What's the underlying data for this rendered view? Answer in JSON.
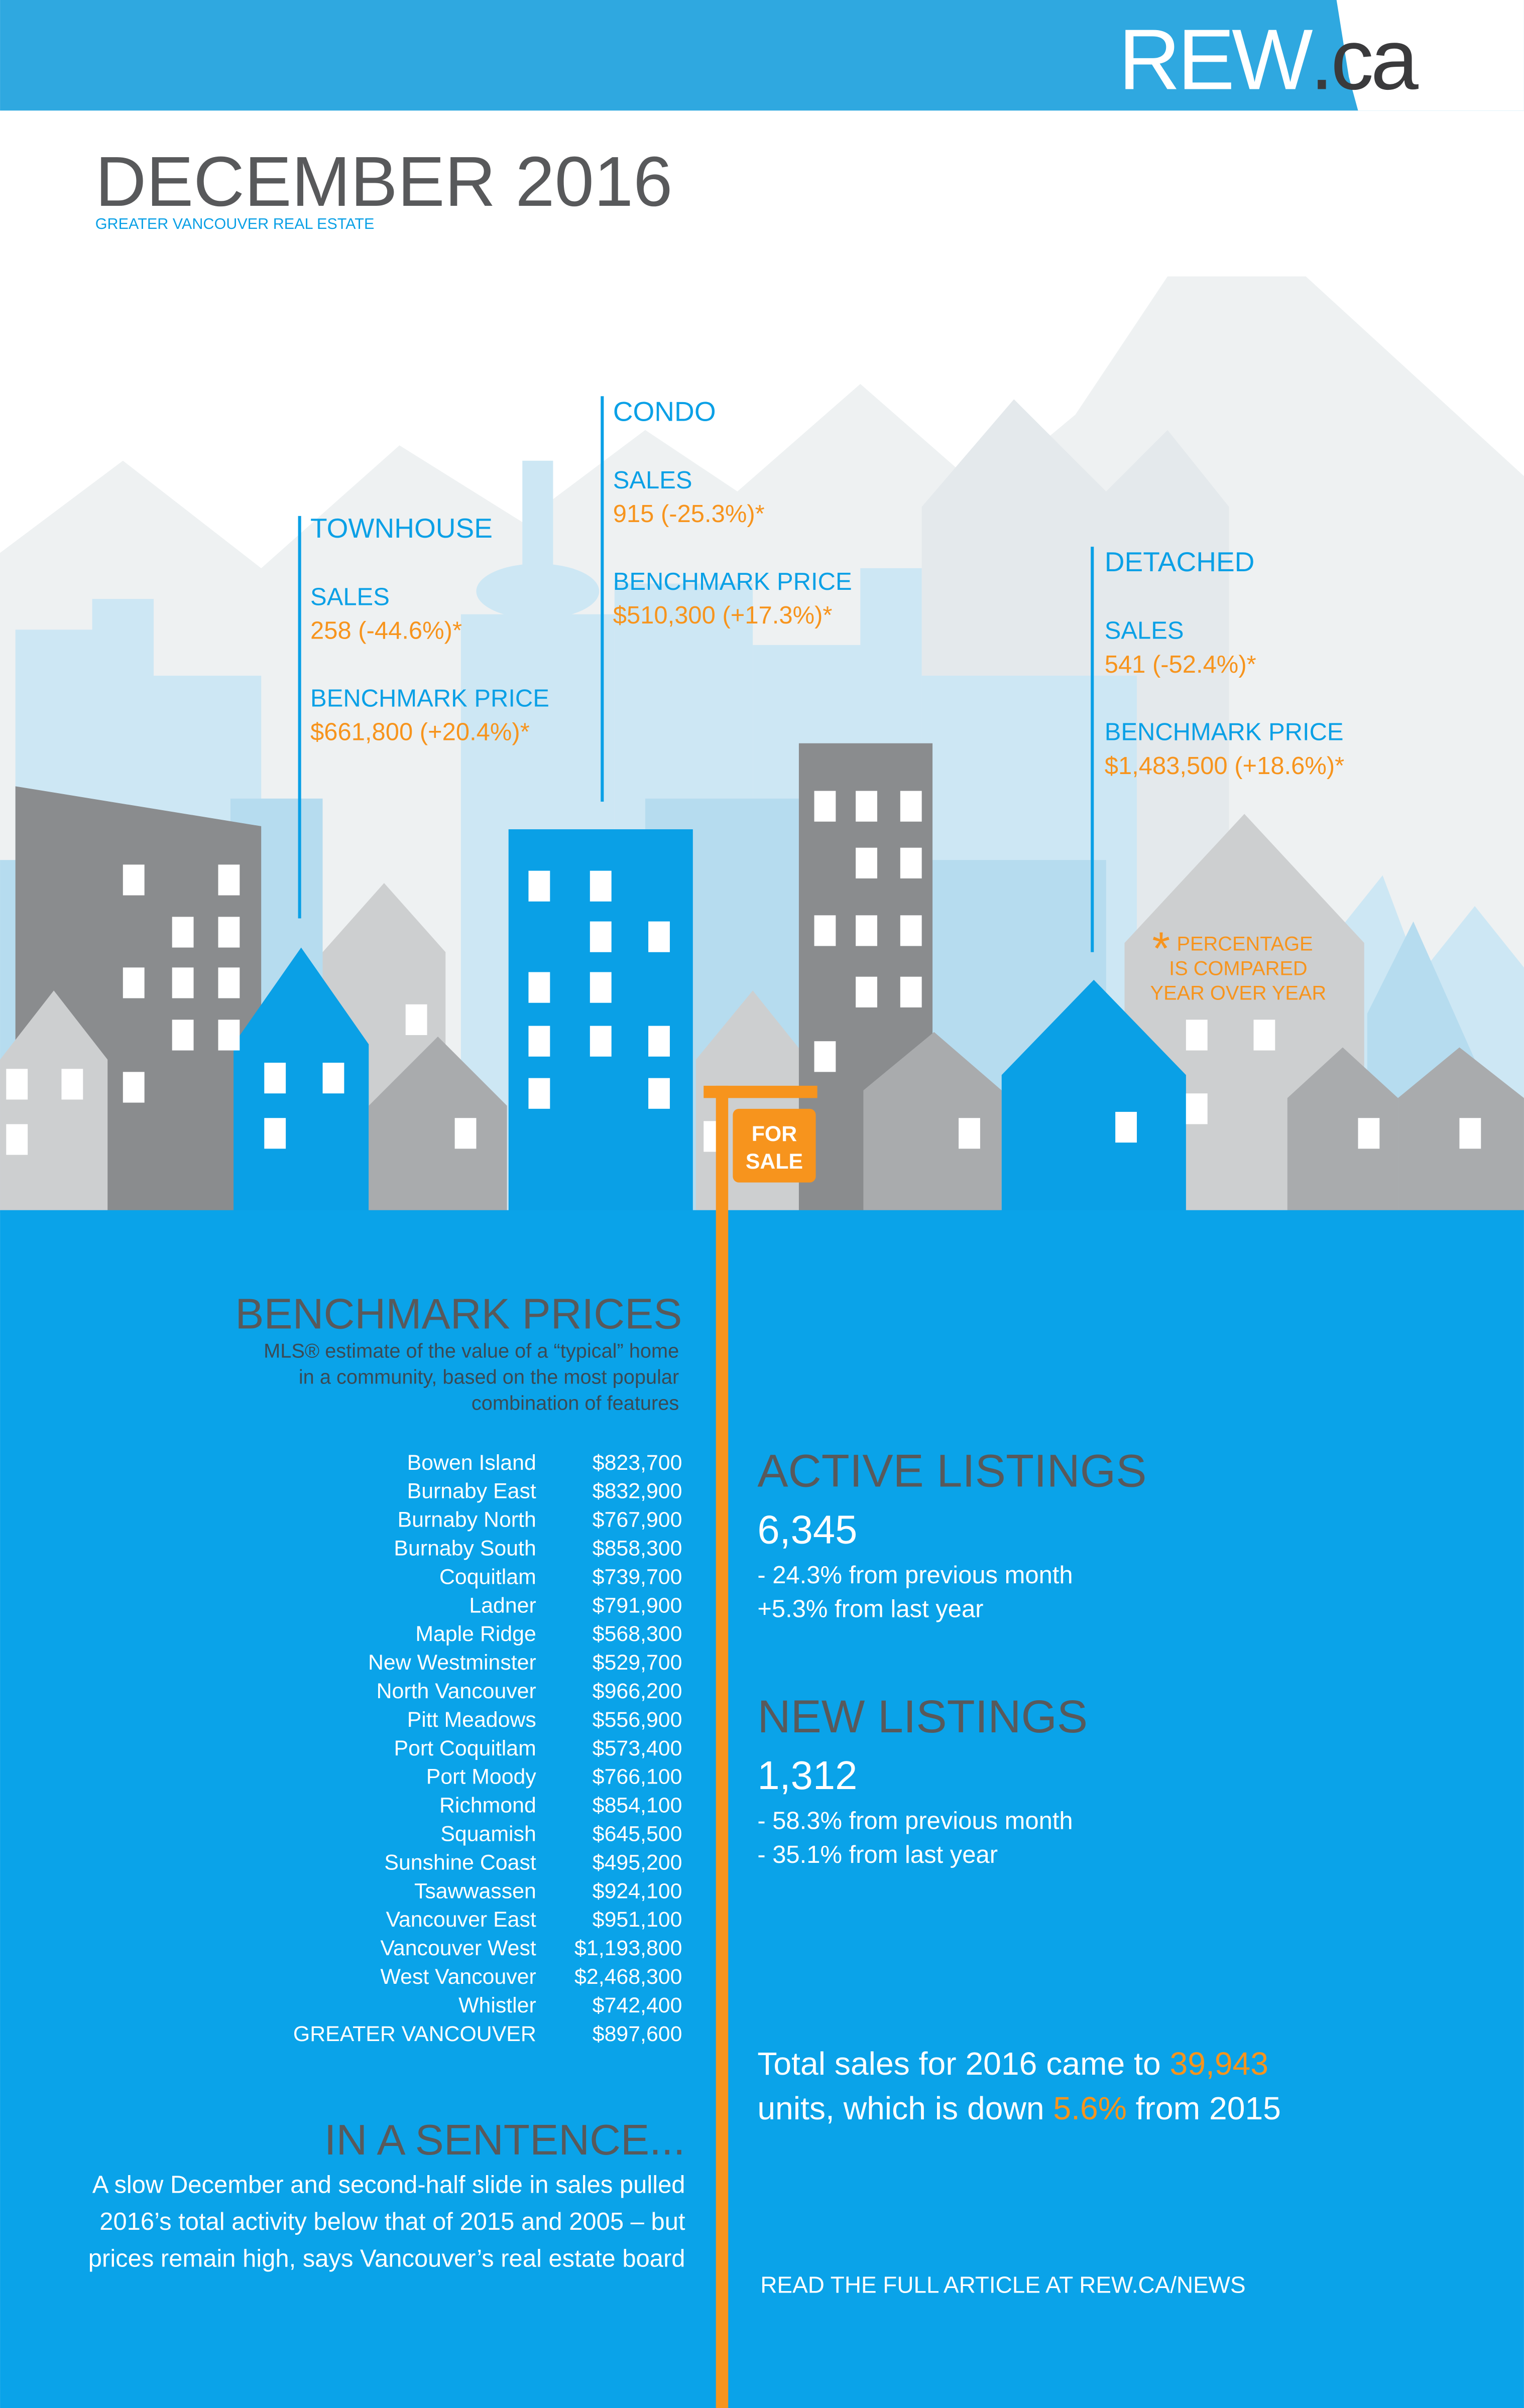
{
  "logo": [
    "REW",
    ".ca"
  ],
  "header": {
    "title": "DECEMBER 2016",
    "subtitle": "GREATER VANCOUVER REAL ESTATE"
  },
  "segments": [
    {
      "label": "TOWNHOUSE",
      "sales_label": "SALES",
      "sales": "258 (-44.6%)*",
      "price_label": "BENCHMARK PRICE",
      "price": "$661,800 (+20.4%)*"
    },
    {
      "label": "CONDO",
      "sales_label": "SALES",
      "sales": "915 (-25.3%)*",
      "price_label": "BENCHMARK PRICE",
      "price": "$510,300 (+17.3%)*"
    },
    {
      "label": "DETACHED",
      "sales_label": "SALES",
      "sales": "541 (-52.4%)*",
      "price_label": "BENCHMARK PRICE",
      "price": "$1,483,500 (+18.6%)*"
    }
  ],
  "note": {
    "asterisk": "*",
    "lines": [
      "PERCENTAGE",
      "IS COMPARED",
      "YEAR OVER YEAR"
    ]
  },
  "for_sale": [
    "FOR",
    "SALE"
  ],
  "benchmark": {
    "title": "BENCHMARK PRICES",
    "description": [
      "MLS® estimate of the value of a “typical” home",
      "in a community, based on the most popular",
      "combination of features"
    ],
    "rows": [
      [
        "Bowen Island",
        "$823,700"
      ],
      [
        "Burnaby East",
        "$832,900"
      ],
      [
        "Burnaby North",
        "$767,900"
      ],
      [
        "Burnaby South",
        "$858,300"
      ],
      [
        "Coquitlam",
        "$739,700"
      ],
      [
        "Ladner",
        "$791,900"
      ],
      [
        "Maple Ridge",
        "$568,300"
      ],
      [
        "New Westminster",
        "$529,700"
      ],
      [
        "North Vancouver",
        "$966,200"
      ],
      [
        "Pitt Meadows",
        "$556,900"
      ],
      [
        "Port Coquitlam",
        "$573,400"
      ],
      [
        "Port Moody",
        "$766,100"
      ],
      [
        "Richmond",
        "$854,100"
      ],
      [
        "Squamish",
        "$645,500"
      ],
      [
        "Sunshine Coast",
        "$495,200"
      ],
      [
        "Tsawwassen",
        "$924,100"
      ],
      [
        "Vancouver East",
        "$951,100"
      ],
      [
        "Vancouver West",
        "$1,193,800"
      ],
      [
        "West Vancouver",
        "$2,468,300"
      ],
      [
        "Whistler",
        "$742,400"
      ],
      [
        "GREATER VANCOUVER",
        "$897,600"
      ]
    ]
  },
  "active_listings": {
    "title": "ACTIVE LISTINGS",
    "value": "6,345",
    "changes": [
      "- 24.3% from previous month",
      "+5.3% from last year"
    ]
  },
  "new_listings": {
    "title": "NEW LISTINGS",
    "value": "1,312",
    "changes": [
      "- 58.3% from previous month",
      "- 35.1% from last year"
    ]
  },
  "total": {
    "lines": [
      [
        "Total sales for 2016 came to ",
        "39,943"
      ],
      [
        "units, which is down ",
        "5.6%",
        " from 2015"
      ]
    ]
  },
  "in_a_sentence": {
    "title": "IN A SENTENCE...",
    "lines": [
      "A slow December and second-half slide in sales pulled",
      "2016’s total activity below that of 2015 and 2005 – but",
      "prices remain high, says Vancouver’s real estate board"
    ]
  },
  "footer": "READ THE FULL ARTICLE AT REW.CA/NEWS"
}
